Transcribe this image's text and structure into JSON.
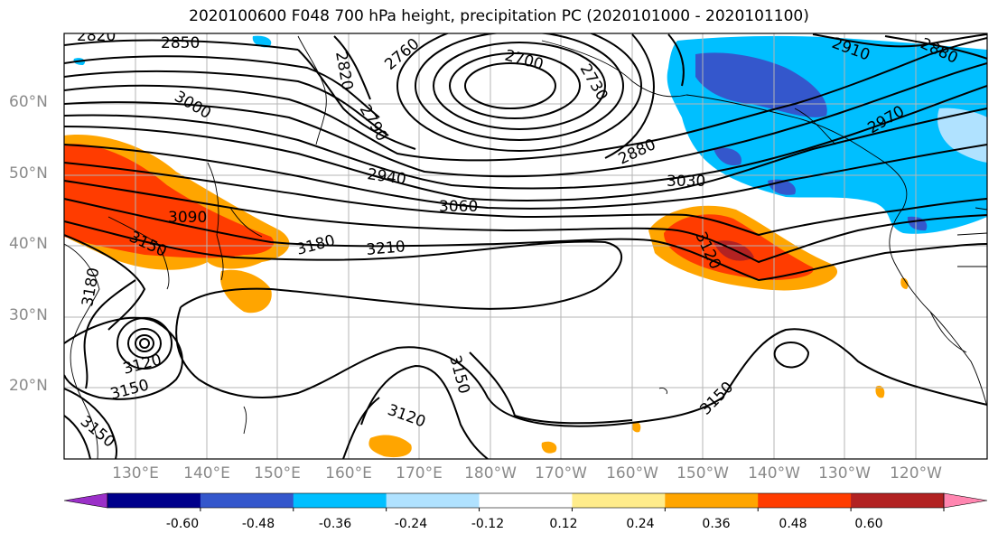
{
  "title": "2020100600 F048 700 hPa height, precipitation PC (2020101000 - 2020101100)",
  "lat_labels": [
    "60°N",
    "50°N",
    "40°N",
    "30°N",
    "20°N"
  ],
  "lon_labels": [
    "130°E",
    "140°E",
    "150°E",
    "160°E",
    "170°E",
    "180°W",
    "170°W",
    "160°W",
    "150°W",
    "140°W",
    "130°W",
    "120°W"
  ],
  "contour_labels": {
    "l2820a": "2820",
    "l2850": "2850",
    "l2760": "2760",
    "l2700": "2700",
    "l2730": "2730",
    "l2820b": "2820",
    "l2790": "2790",
    "l3000": "3000",
    "l2910": "2910",
    "l2880a": "2880",
    "l2970": "2970",
    "l2880b": "2880",
    "l2940": "2940",
    "l3030": "3030",
    "l3060": "3060",
    "l3090": "3090",
    "l3150a": "3150",
    "l3180a": "3180",
    "l3210": "3210",
    "l3120a": "3120",
    "l3180b": "3180",
    "l3120b": "3120",
    "l3150b": "3150",
    "l3150c": "3150",
    "l3150d": "3150",
    "l3120c": "3120",
    "l3150e": "3150"
  },
  "colorbar": {
    "colors": [
      "#9b30c8",
      "#00008b",
      "#3457cc",
      "#00bfff",
      "#b0e2ff",
      "#ffffff",
      "#ffec8b",
      "#ffa500",
      "#ff3c00",
      "#b22222",
      "#ff86b0"
    ],
    "labels": [
      "-0.60",
      "-0.48",
      "-0.36",
      "-0.24",
      "-0.12",
      "0.12",
      "0.24",
      "0.36",
      "0.48",
      "0.60"
    ]
  }
}
